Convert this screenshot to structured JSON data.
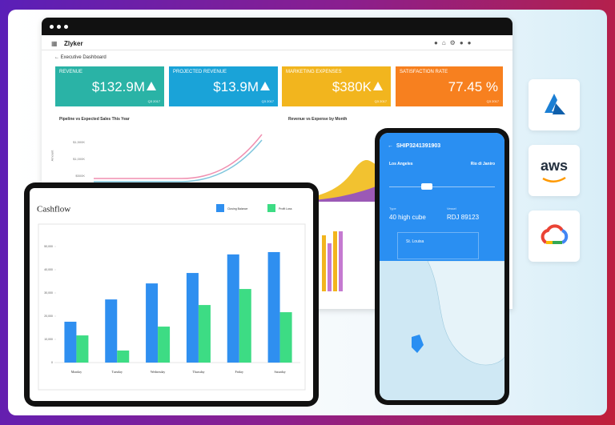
{
  "dashboard": {
    "app_name": "Zlyker",
    "page_title": "Executive Dashboard",
    "kpis": [
      {
        "label": "REVENUE",
        "value": "$132.9M",
        "period": "Q3 2017"
      },
      {
        "label": "PROJECTED REVENUE",
        "value": "$13.9M",
        "period": "Q3 2017"
      },
      {
        "label": "MARKETING EXPENSES",
        "value": "$380K",
        "period": "Q3 2017"
      },
      {
        "label": "SATISFACTION RATE",
        "value": "77.45 %",
        "period": "Q3 2017"
      }
    ],
    "pipeline_chart": {
      "title": "Pipeline vs Expected Sales This Year",
      "axis_label": "Amount",
      "ticks": [
        "$1,500K",
        "$1,000K",
        "$500K"
      ]
    },
    "revenue_chart": {
      "title": "Revenue vs Expense by Month"
    }
  },
  "chart_data": {
    "type": "bar",
    "title": "Cashflow",
    "categories": [
      "Monday",
      "Tuesday",
      "Wednesday",
      "Thursday",
      "Friday",
      "Saturday"
    ],
    "series": [
      {
        "name": "Closing Balance",
        "color": "#2f8ff0",
        "values": [
          17600,
          27200,
          34100,
          38600,
          46600,
          47600
        ]
      },
      {
        "name": "Profit Loss",
        "color": "#3ddc84",
        "values": [
          11700,
          5200,
          15500,
          24800,
          31700,
          21700
        ]
      }
    ],
    "ylim": [
      0,
      50000
    ],
    "yticks": [
      {
        "value": 0,
        "label": "0"
      },
      {
        "value": 10000,
        "label": "10,000"
      },
      {
        "value": 20000,
        "label": "20,000"
      },
      {
        "value": 30000,
        "label": "30,000"
      },
      {
        "value": 40000,
        "label": "40,000"
      },
      {
        "value": 50000,
        "label": "50,000"
      }
    ],
    "grid": false
  },
  "shipment": {
    "id": "SHIP3241391903",
    "origin": "Los Angeles",
    "destination": "Rio di Janiro",
    "type_label": "Type",
    "type_value": "40 high cube",
    "vessel_label": "Vessel",
    "vessel_value": "RDJ 89123",
    "stop": "St. Louisa"
  },
  "clouds": {
    "aws": "aws"
  }
}
